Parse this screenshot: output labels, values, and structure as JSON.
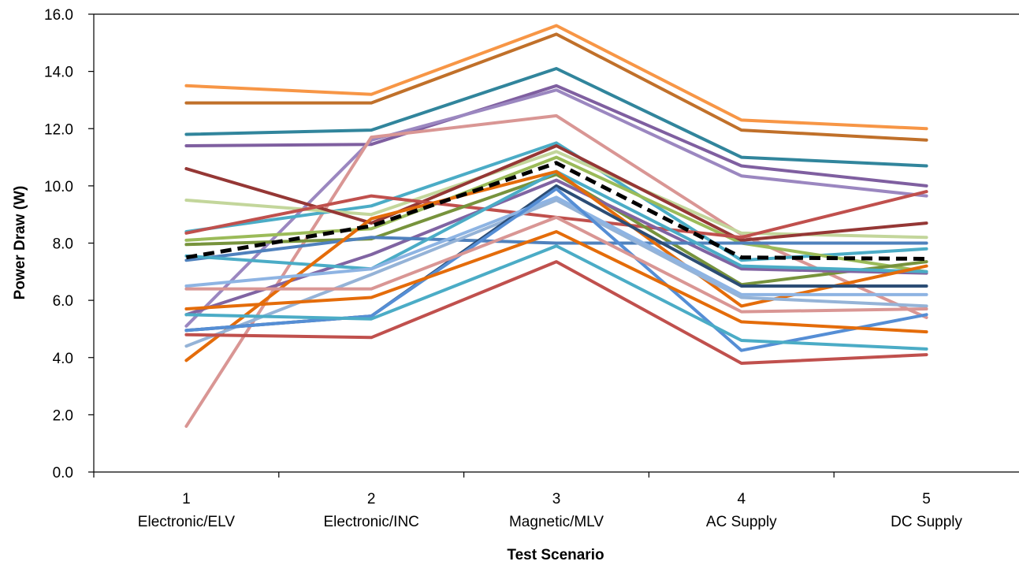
{
  "chart_data": {
    "type": "line",
    "title": "",
    "xlabel": "Test Scenario",
    "ylabel": "Power Draw (W)",
    "ylim": [
      0,
      16
    ],
    "yticks": [
      "0.0",
      "2.0",
      "4.0",
      "6.0",
      "8.0",
      "10.0",
      "12.0",
      "14.0",
      "16.0"
    ],
    "grid": false,
    "legend": "none",
    "categories": [
      {
        "num": "1",
        "name": "Electronic/ELV"
      },
      {
        "num": "2",
        "name": "Electronic/INC"
      },
      {
        "num": "3",
        "name": "Magnetic/MLV"
      },
      {
        "num": "4",
        "name": "AC Supply"
      },
      {
        "num": "5",
        "name": "DC Supply"
      }
    ],
    "series": [
      {
        "color": "#F79646",
        "values": [
          13.5,
          13.2,
          15.6,
          12.3,
          12.0
        ]
      },
      {
        "color": "#C0702A",
        "values": [
          12.9,
          12.9,
          15.3,
          11.95,
          11.6
        ]
      },
      {
        "color": "#31859C",
        "values": [
          11.8,
          11.95,
          14.1,
          11.0,
          10.7
        ]
      },
      {
        "color": "#7F5FA0",
        "values": [
          11.4,
          11.45,
          13.5,
          10.7,
          10.0
        ]
      },
      {
        "color": "#9B87C0",
        "values": [
          5.1,
          11.6,
          13.35,
          10.35,
          9.65
        ]
      },
      {
        "color": "#D99694",
        "values": [
          1.6,
          11.7,
          12.45,
          8.3,
          5.4
        ]
      },
      {
        "color": "#4BACC6",
        "values": [
          8.4,
          9.3,
          11.5,
          7.4,
          7.8
        ]
      },
      {
        "color": "#9BBB59",
        "values": [
          8.1,
          8.5,
          11.0,
          8.0,
          7.0
        ]
      },
      {
        "color": "#C3D69B",
        "values": [
          9.5,
          9.0,
          11.2,
          8.35,
          8.2
        ]
      },
      {
        "color": "#953735",
        "values": [
          10.6,
          8.7,
          11.4,
          8.1,
          8.7
        ]
      },
      {
        "color": "#C0504D",
        "values": [
          8.35,
          9.65,
          8.9,
          8.2,
          9.8
        ]
      },
      {
        "color": "#77933C",
        "values": [
          7.95,
          8.15,
          10.4,
          6.55,
          7.35
        ]
      },
      {
        "color": "#8064A2",
        "values": [
          5.5,
          7.6,
          10.2,
          7.1,
          6.95
        ]
      },
      {
        "color": "#4F81BD",
        "values": [
          7.4,
          8.2,
          8.0,
          8.0,
          8.0
        ]
      },
      {
        "color": "#4BACC6",
        "values": [
          7.55,
          7.1,
          10.5,
          7.2,
          7.0
        ]
      },
      {
        "color": "#E46C0A",
        "values": [
          3.9,
          8.85,
          10.5,
          5.8,
          7.2
        ]
      },
      {
        "color": "#95B3D7",
        "values": [
          4.4,
          6.9,
          9.5,
          6.1,
          5.8
        ]
      },
      {
        "color": "#2C4D75",
        "values": [
          4.95,
          5.45,
          10.0,
          6.5,
          6.5
        ]
      },
      {
        "color": "#8EB4E3",
        "values": [
          6.5,
          7.1,
          9.6,
          6.2,
          6.2
        ]
      },
      {
        "color": "#558ED5",
        "values": [
          4.95,
          5.45,
          9.9,
          4.25,
          5.5
        ]
      },
      {
        "color": "#E46C0A",
        "values": [
          5.7,
          6.1,
          8.4,
          5.25,
          4.9
        ]
      },
      {
        "color": "#D99694",
        "values": [
          6.4,
          6.4,
          8.9,
          5.6,
          5.7
        ]
      },
      {
        "color": "#4BACC6",
        "values": [
          5.5,
          5.35,
          7.9,
          4.6,
          4.3
        ]
      },
      {
        "color": "#C0504D",
        "values": [
          4.8,
          4.7,
          7.35,
          3.8,
          4.1
        ]
      },
      {
        "color": "#000000",
        "dashed": true,
        "values": [
          7.5,
          8.6,
          10.8,
          7.5,
          7.45
        ]
      }
    ]
  }
}
